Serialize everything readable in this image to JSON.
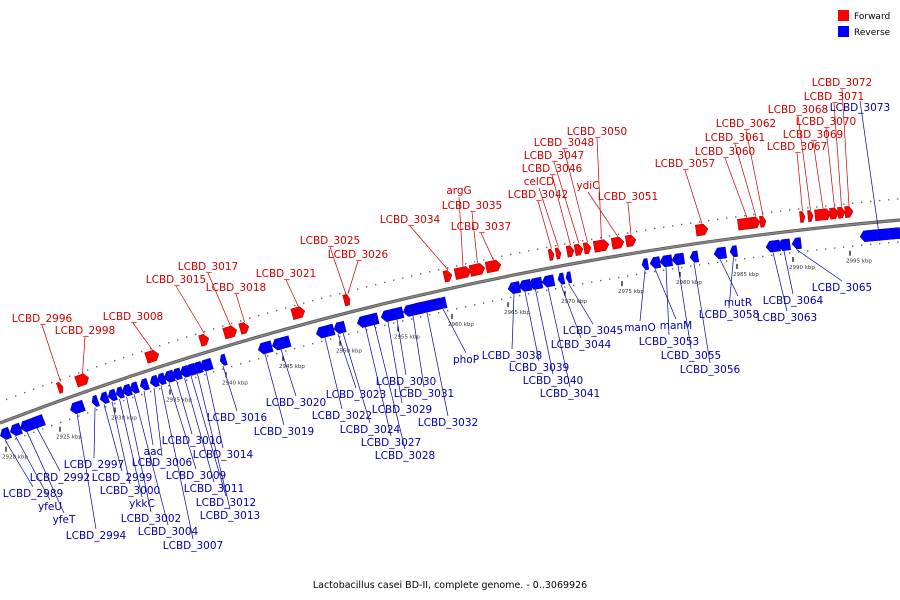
{
  "caption": "Lactobacillus casei BD-II, complete genome. - 0..3069926",
  "legend": {
    "forward": {
      "label": "Forward",
      "color": "#ff0000"
    },
    "reverse": {
      "label": "Reverse",
      "color": "#0000ff"
    }
  },
  "colors": {
    "forward_label": "#cc0000",
    "reverse_label": "#0000aa",
    "backbone": "#888888"
  },
  "kbp_ticks": [
    "2920 kbp",
    "2925 kbp",
    "2930 kbp",
    "2935 kbp",
    "2940 kbp",
    "2945 kbp",
    "2950 kbp",
    "2955 kbp",
    "2960 kbp",
    "2965 kbp",
    "2970 kbp",
    "2975 kbp",
    "2980 kbp",
    "2985 kbp",
    "2990 kbp",
    "2995 kbp"
  ],
  "forward_genes": [
    "LCBD_2996",
    "LCBD_2998",
    "LCBD_3008",
    "LCBD_3015",
    "LCBD_3017",
    "LCBD_3018",
    "LCBD_3021",
    "LCBD_3025",
    "LCBD_3026",
    "LCBD_3034",
    "argG",
    "LCBD_3035",
    "LCBD_3037",
    "LCBD_3042",
    "celCD",
    "LCBD_3046",
    "LCBD_3047",
    "LCBD_3048",
    "LCBD_3050",
    "ydiC",
    "LCBD_3051",
    "LCBD_3057",
    "LCBD_3060",
    "LCBD_3061",
    "LCBD_3062",
    "LCBD_3067",
    "LCBD_3068",
    "LCBD_3069",
    "LCBD_3070",
    "LCBD_3071",
    "LCBD_3072"
  ],
  "reverse_genes": [
    "LCBD_2989",
    "yfeU",
    "yfeT",
    "LCBD_2992",
    "LCBD_2994",
    "LCBD_2997",
    "LCBD_2999",
    "LCBD_3000",
    "ykkC",
    "LCBD_3002",
    "LCBD_3004",
    "aac",
    "LCBD_3006",
    "LCBD_3007",
    "LCBD_3009",
    "LCBD_3010",
    "LCBD_3011",
    "LCBD_3012",
    "LCBD_3013",
    "LCBD_3014",
    "LCBD_3016",
    "LCBD_3019",
    "LCBD_3020",
    "LCBD_3022",
    "LCBD_3023",
    "LCBD_3024",
    "LCBD_3027",
    "LCBD_3028",
    "LCBD_3029",
    "LCBD_3030",
    "LCBD_3031",
    "LCBD_3032",
    "phoP",
    "LCBD_3038",
    "LCBD_3039",
    "LCBD_3040",
    "LCBD_3041",
    "LCBD_3044",
    "LCBD_3045",
    "manO",
    "manM",
    "LCBD_3053",
    "LCBD_3055",
    "LCBD_3056",
    "mutR",
    "LCBD_3058",
    "LCBD_3063",
    "LCBD_3064",
    "LCBD_3065",
    "LCBD_3073"
  ]
}
